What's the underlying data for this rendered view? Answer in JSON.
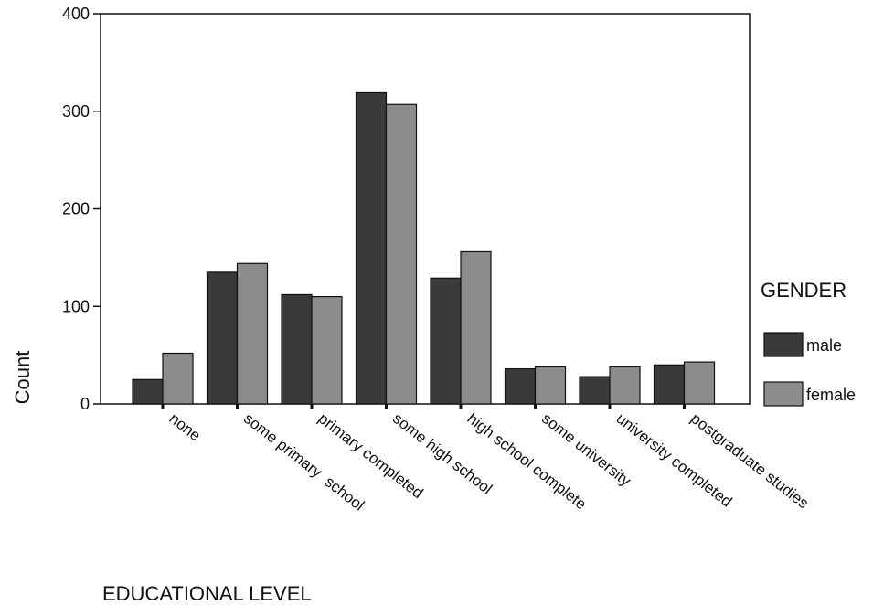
{
  "chart_data": {
    "type": "bar",
    "title": "",
    "xlabel": "EDUCATIONAL LEVEL",
    "ylabel": "Count",
    "ylim": [
      0,
      400
    ],
    "yticks": [
      0,
      100,
      200,
      300,
      400
    ],
    "grid": false,
    "legend_position": "right",
    "legend_title": "GENDER",
    "categories": [
      "none",
      "some primary  school",
      "primary completed",
      "some high school",
      "high school complete",
      "some university",
      "university completed",
      "postgraduate studies"
    ],
    "series": [
      {
        "name": "male",
        "color": "#3a3a3a",
        "values": [
          25,
          135,
          112,
          319,
          129,
          36,
          28,
          40
        ]
      },
      {
        "name": "female",
        "color": "#8c8c8c",
        "values": [
          52,
          144,
          110,
          307,
          156,
          38,
          38,
          43
        ]
      }
    ]
  }
}
